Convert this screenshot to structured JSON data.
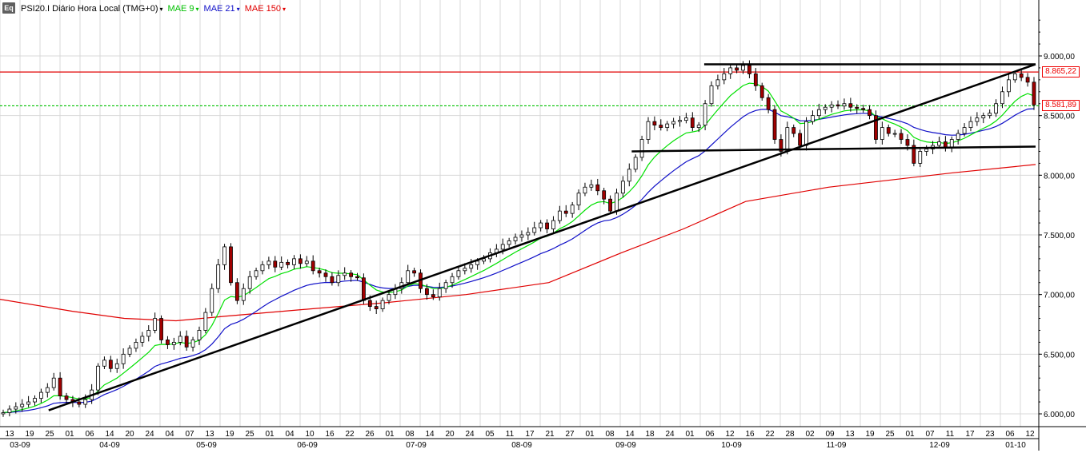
{
  "header": {
    "icon_label": "Eq",
    "symbol": "PSI20.I Diário Hora Local (TMG+0)",
    "mae9": "MAE 9",
    "mae21": "MAE 21",
    "mae150": "MAE 150"
  },
  "colors": {
    "mae9": "#00e000",
    "mae21": "#1010c8",
    "mae150": "#e00000",
    "candle_up": "#ffffff",
    "candle_down": "#a00000",
    "trend": "#000000",
    "grid": "#d8d8d8"
  },
  "price_tags": {
    "upper": "8.865,22",
    "lower": "8.581,89"
  },
  "chart_data": {
    "type": "candlestick",
    "title": "PSI20.I Diário Hora Local (TMG+0)",
    "ylim": [
      5900,
      9400
    ],
    "yticks": [
      "6.000,00",
      "6.500,00",
      "7.000,00",
      "7.500,00",
      "8.000,00",
      "8.500,00",
      "9.000,00"
    ],
    "ytick_values": [
      6000,
      6500,
      7000,
      7500,
      8000,
      8500,
      9000
    ],
    "x_day_labels": [
      "13",
      "19",
      "25",
      "01",
      "06",
      "14",
      "20",
      "24",
      "04",
      "07",
      "13",
      "19",
      "25",
      "01",
      "04",
      "10",
      "16",
      "22",
      "26",
      "01",
      "08",
      "14",
      "20",
      "24",
      "05",
      "11",
      "17",
      "21",
      "27",
      "01",
      "08",
      "14",
      "18",
      "24",
      "01",
      "06",
      "12",
      "16",
      "22",
      "28",
      "02",
      "09",
      "13",
      "19",
      "25",
      "01",
      "07",
      "11",
      "17",
      "23",
      "06",
      "12"
    ],
    "x_month_labels": [
      "03-09",
      "04-09",
      "05-09",
      "06-09",
      "07-09",
      "08-09",
      "09-09",
      "10-09",
      "11-09",
      "12-09",
      "01-10"
    ],
    "closes": [
      6010,
      6040,
      6060,
      6080,
      6100,
      6130,
      6180,
      6220,
      6300,
      6150,
      6120,
      6100,
      6080,
      6120,
      6200,
      6400,
      6450,
      6380,
      6420,
      6500,
      6550,
      6600,
      6650,
      6700,
      6800,
      6620,
      6580,
      6600,
      6650,
      6560,
      6620,
      6700,
      6850,
      7050,
      7250,
      7400,
      7100,
      6950,
      7050,
      7150,
      7200,
      7250,
      7280,
      7230,
      7270,
      7250,
      7300,
      7260,
      7280,
      7200,
      7180,
      7150,
      7100,
      7160,
      7180,
      7150,
      7140,
      6950,
      6900,
      6880,
      6950,
      7000,
      7050,
      7100,
      7200,
      7180,
      7050,
      7000,
      6980,
      7050,
      7100,
      7150,
      7200,
      7220,
      7250,
      7280,
      7300,
      7350,
      7380,
      7420,
      7450,
      7480,
      7500,
      7520,
      7560,
      7600,
      7550,
      7620,
      7700,
      7680,
      7750,
      7850,
      7900,
      7920,
      7870,
      7800,
      7700,
      7850,
      7950,
      8050,
      8150,
      8300,
      8450,
      8420,
      8400,
      8430,
      8450,
      8460,
      8480,
      8400,
      8420,
      8600,
      8750,
      8800,
      8850,
      8900,
      8880,
      8920,
      8850,
      8750,
      8650,
      8550,
      8300,
      8200,
      8400,
      8350,
      8250,
      8450,
      8500,
      8550,
      8570,
      8590,
      8580,
      8600,
      8570,
      8560,
      8550,
      8500,
      8300,
      8400,
      8350,
      8350,
      8300,
      8250,
      8100,
      8200,
      8220,
      8250,
      8280,
      8230,
      8300,
      8350,
      8400,
      8450,
      8480,
      8500,
      8520,
      8600,
      8700,
      8800,
      8850,
      8820,
      8780,
      8590
    ],
    "ma150_points": [
      [
        0,
        6960
      ],
      [
        0.07,
        6860
      ],
      [
        0.12,
        6800
      ],
      [
        0.17,
        6780
      ],
      [
        0.22,
        6820
      ],
      [
        0.3,
        6880
      ],
      [
        0.37,
        6930
      ],
      [
        0.45,
        7000
      ],
      [
        0.53,
        7100
      ],
      [
        0.6,
        7350
      ],
      [
        0.66,
        7550
      ],
      [
        0.72,
        7780
      ],
      [
        0.8,
        7900
      ],
      [
        0.86,
        7960
      ],
      [
        0.92,
        8020
      ],
      [
        1.0,
        8090
      ]
    ],
    "trend_lines": [
      {
        "name": "rising-support",
        "from": [
          0.047,
          6030
        ],
        "to": [
          1.0,
          8930
        ]
      },
      {
        "name": "top-resistance",
        "from": [
          0.68,
          8930
        ],
        "to": [
          1.0,
          8930
        ]
      },
      {
        "name": "neckline",
        "from": [
          0.61,
          8200
        ],
        "to": [
          1.0,
          8240
        ]
      }
    ],
    "hlines": [
      {
        "name": "upper-red",
        "value": 8865.22,
        "color": "#e00000"
      },
      {
        "name": "lower-green",
        "value": 8581.89,
        "color": "#00c000"
      }
    ]
  }
}
